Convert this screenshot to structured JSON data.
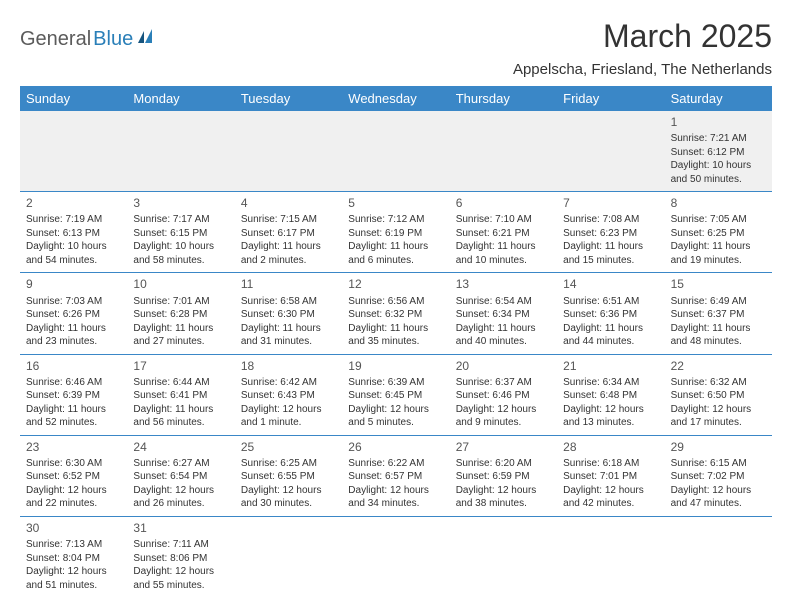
{
  "logo": {
    "general": "General",
    "blue": "Blue"
  },
  "title": "March 2025",
  "subtitle": "Appelscha, Friesland, The Netherlands",
  "colors": {
    "header_bg": "#3a87c7",
    "header_fg": "#ffffff",
    "first_week_bg": "#f0f0f0",
    "border": "#3a87c7",
    "text": "#333333",
    "logo_gray": "#5b5b5b",
    "logo_blue": "#2a7fb8"
  },
  "daynames": [
    "Sunday",
    "Monday",
    "Tuesday",
    "Wednesday",
    "Thursday",
    "Friday",
    "Saturday"
  ],
  "weeks": [
    [
      null,
      null,
      null,
      null,
      null,
      null,
      {
        "d": "1",
        "sr": "7:21 AM",
        "ss": "6:12 PM",
        "dl": "10 hours and 50 minutes."
      }
    ],
    [
      {
        "d": "2",
        "sr": "7:19 AM",
        "ss": "6:13 PM",
        "dl": "10 hours and 54 minutes."
      },
      {
        "d": "3",
        "sr": "7:17 AM",
        "ss": "6:15 PM",
        "dl": "10 hours and 58 minutes."
      },
      {
        "d": "4",
        "sr": "7:15 AM",
        "ss": "6:17 PM",
        "dl": "11 hours and 2 minutes."
      },
      {
        "d": "5",
        "sr": "7:12 AM",
        "ss": "6:19 PM",
        "dl": "11 hours and 6 minutes."
      },
      {
        "d": "6",
        "sr": "7:10 AM",
        "ss": "6:21 PM",
        "dl": "11 hours and 10 minutes."
      },
      {
        "d": "7",
        "sr": "7:08 AM",
        "ss": "6:23 PM",
        "dl": "11 hours and 15 minutes."
      },
      {
        "d": "8",
        "sr": "7:05 AM",
        "ss": "6:25 PM",
        "dl": "11 hours and 19 minutes."
      }
    ],
    [
      {
        "d": "9",
        "sr": "7:03 AM",
        "ss": "6:26 PM",
        "dl": "11 hours and 23 minutes."
      },
      {
        "d": "10",
        "sr": "7:01 AM",
        "ss": "6:28 PM",
        "dl": "11 hours and 27 minutes."
      },
      {
        "d": "11",
        "sr": "6:58 AM",
        "ss": "6:30 PM",
        "dl": "11 hours and 31 minutes."
      },
      {
        "d": "12",
        "sr": "6:56 AM",
        "ss": "6:32 PM",
        "dl": "11 hours and 35 minutes."
      },
      {
        "d": "13",
        "sr": "6:54 AM",
        "ss": "6:34 PM",
        "dl": "11 hours and 40 minutes."
      },
      {
        "d": "14",
        "sr": "6:51 AM",
        "ss": "6:36 PM",
        "dl": "11 hours and 44 minutes."
      },
      {
        "d": "15",
        "sr": "6:49 AM",
        "ss": "6:37 PM",
        "dl": "11 hours and 48 minutes."
      }
    ],
    [
      {
        "d": "16",
        "sr": "6:46 AM",
        "ss": "6:39 PM",
        "dl": "11 hours and 52 minutes."
      },
      {
        "d": "17",
        "sr": "6:44 AM",
        "ss": "6:41 PM",
        "dl": "11 hours and 56 minutes."
      },
      {
        "d": "18",
        "sr": "6:42 AM",
        "ss": "6:43 PM",
        "dl": "12 hours and 1 minute."
      },
      {
        "d": "19",
        "sr": "6:39 AM",
        "ss": "6:45 PM",
        "dl": "12 hours and 5 minutes."
      },
      {
        "d": "20",
        "sr": "6:37 AM",
        "ss": "6:46 PM",
        "dl": "12 hours and 9 minutes."
      },
      {
        "d": "21",
        "sr": "6:34 AM",
        "ss": "6:48 PM",
        "dl": "12 hours and 13 minutes."
      },
      {
        "d": "22",
        "sr": "6:32 AM",
        "ss": "6:50 PM",
        "dl": "12 hours and 17 minutes."
      }
    ],
    [
      {
        "d": "23",
        "sr": "6:30 AM",
        "ss": "6:52 PM",
        "dl": "12 hours and 22 minutes."
      },
      {
        "d": "24",
        "sr": "6:27 AM",
        "ss": "6:54 PM",
        "dl": "12 hours and 26 minutes."
      },
      {
        "d": "25",
        "sr": "6:25 AM",
        "ss": "6:55 PM",
        "dl": "12 hours and 30 minutes."
      },
      {
        "d": "26",
        "sr": "6:22 AM",
        "ss": "6:57 PM",
        "dl": "12 hours and 34 minutes."
      },
      {
        "d": "27",
        "sr": "6:20 AM",
        "ss": "6:59 PM",
        "dl": "12 hours and 38 minutes."
      },
      {
        "d": "28",
        "sr": "6:18 AM",
        "ss": "7:01 PM",
        "dl": "12 hours and 42 minutes."
      },
      {
        "d": "29",
        "sr": "6:15 AM",
        "ss": "7:02 PM",
        "dl": "12 hours and 47 minutes."
      }
    ],
    [
      {
        "d": "30",
        "sr": "7:13 AM",
        "ss": "8:04 PM",
        "dl": "12 hours and 51 minutes."
      },
      {
        "d": "31",
        "sr": "7:11 AM",
        "ss": "8:06 PM",
        "dl": "12 hours and 55 minutes."
      },
      null,
      null,
      null,
      null,
      null
    ]
  ],
  "labels": {
    "sunrise": "Sunrise:",
    "sunset": "Sunset:",
    "daylight": "Daylight:"
  }
}
